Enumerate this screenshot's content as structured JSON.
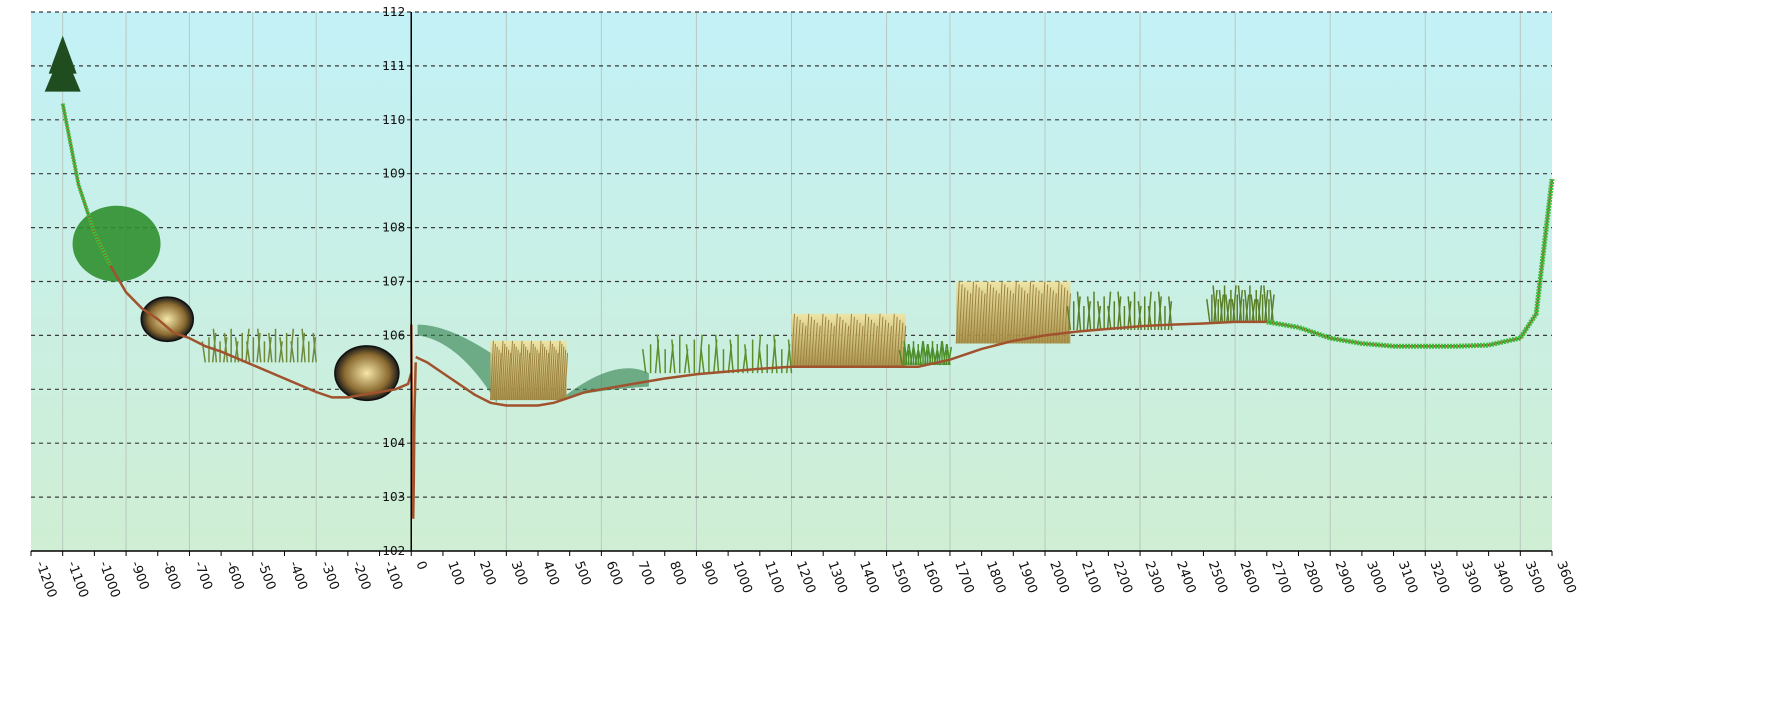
{
  "chart_data": {
    "type": "area",
    "title": "",
    "xlabel": "",
    "ylabel": "",
    "xlim": [
      -1200,
      3600
    ],
    "ylim": [
      102,
      112
    ],
    "grid": true,
    "x_ticks": [
      -1200,
      -1100,
      -1000,
      -900,
      -800,
      -700,
      -600,
      -500,
      -400,
      -300,
      -200,
      -100,
      0,
      100,
      200,
      300,
      400,
      500,
      600,
      700,
      800,
      900,
      1000,
      1100,
      1200,
      1300,
      1400,
      1500,
      1600,
      1700,
      1800,
      1900,
      2000,
      2100,
      2200,
      2300,
      2400,
      2500,
      2600,
      2700,
      2800,
      2900,
      3000,
      3100,
      3200,
      3300,
      3400,
      3500,
      3600
    ],
    "x_tick_labels": [
      "-1200",
      "-1100",
      "-1000",
      "-900",
      "-800",
      "-700",
      "-600",
      "-500",
      "-400",
      "-300",
      "-200",
      "-100",
      "0",
      "100",
      "200",
      "300",
      "400",
      "500",
      "600",
      "700",
      "800",
      "900",
      "1000",
      "1100",
      "1200",
      "1300",
      "1400",
      "1500",
      "1600",
      "1700",
      "1800",
      "1900",
      "2000",
      "2100",
      "2200",
      "2300",
      "2400",
      "2500",
      "2600",
      "2700",
      "2800",
      "2900",
      "3000",
      "3100",
      "3200",
      "3300",
      "3400",
      "3500",
      "3600"
    ],
    "y_ticks": [
      102,
      103,
      104,
      105,
      106,
      107,
      108,
      109,
      110,
      111,
      112
    ],
    "y_tick_labels": [
      "102",
      "103",
      "104",
      "",
      "106",
      "107",
      "108",
      "109",
      "110",
      "111",
      "112"
    ],
    "series": [
      {
        "x": [
          -1100,
          -1050,
          -1000,
          -950,
          -900,
          -850,
          -800,
          -750,
          -700,
          -650,
          -600,
          -500,
          -400,
          -300,
          -250,
          -200,
          -150,
          -100,
          -50,
          -10,
          0
        ],
        "y": [
          110.3,
          108.8,
          107.9,
          107.3,
          106.8,
          106.5,
          106.3,
          106.05,
          105.95,
          105.8,
          105.7,
          105.45,
          105.2,
          104.95,
          104.85,
          104.85,
          104.9,
          104.95,
          105.0,
          105.1,
          105.3
        ]
      },
      {
        "x": [
          0,
          2,
          4,
          6,
          8,
          10,
          14
        ],
        "y": [
          106.2,
          104.5,
          103.3,
          102.6,
          103.3,
          104.5,
          105.5
        ]
      },
      {
        "x": [
          14,
          50,
          100,
          150,
          200,
          250,
          300,
          350,
          400,
          450,
          500,
          550,
          600,
          700,
          800,
          900,
          1000,
          1100,
          1200,
          1300,
          1400,
          1500,
          1600,
          1700,
          1800,
          1900,
          2000,
          2100,
          2200,
          2300,
          2400,
          2500,
          2600,
          2700,
          2800,
          2900,
          3000,
          3100,
          3200,
          3300,
          3400,
          3500,
          3550,
          3600
        ],
        "y": [
          105.6,
          105.5,
          105.3,
          105.1,
          104.9,
          104.75,
          104.7,
          104.7,
          104.7,
          104.75,
          104.85,
          104.95,
          105.0,
          105.1,
          105.2,
          105.28,
          105.33,
          105.38,
          105.42,
          105.42,
          105.42,
          105.42,
          105.42,
          105.55,
          105.75,
          105.9,
          106.0,
          106.07,
          106.12,
          106.17,
          106.2,
          106.22,
          106.25,
          106.25,
          106.15,
          105.95,
          105.85,
          105.8,
          105.8,
          105.8,
          105.82,
          105.95,
          106.4,
          108.9
        ]
      }
    ],
    "colors": {
      "ground": "#a0522d",
      "sky_top": "#c3f1f7",
      "sky_bottom": "#cfeed3",
      "lower_fill": "#caf1c6",
      "vegetation_green": "#3bbf3b",
      "vegetation_dark": "#2e7d32",
      "reeds": "#d8c27a",
      "shrub": "#7a5a2a",
      "tree": "#1f4d1f"
    }
  }
}
